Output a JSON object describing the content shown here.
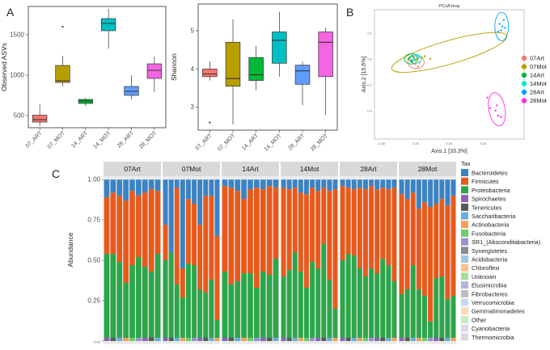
{
  "panel_letters": {
    "a": "A",
    "b": "B",
    "c": "C"
  },
  "colors": {
    "art07": "#f8766d",
    "mot07": "#b79f00",
    "art14": "#00ba38",
    "mot14": "#00bfc4",
    "art28": "#619cff",
    "mot28": "#f564e3",
    "panel_bg": "#ebebeb",
    "strip_bg": "#d9d9d9",
    "grid": "#ffffff",
    "axis_text": "#4d4d4d"
  },
  "chart_data": [
    {
      "id": "observed",
      "type": "boxplot",
      "title": "",
      "ylabel": "Observed ASVs",
      "xlabel": "",
      "ylim": [
        350,
        1850
      ],
      "yticks": [
        "500",
        "1000",
        "1500"
      ],
      "ytick_values": [
        500,
        1000,
        1500
      ],
      "groups": [
        {
          "label": "07_ART",
          "color": "#f8766d",
          "min": 370,
          "q1": 420,
          "median": 450,
          "q3": 505,
          "max": 640,
          "outliers": []
        },
        {
          "label": "07_MOT",
          "color": "#b79f00",
          "min": 860,
          "q1": 910,
          "median": 930,
          "q3": 1120,
          "max": 1240,
          "outliers": [
            1600
          ]
        },
        {
          "label": "14_ART",
          "color": "#00ba38",
          "min": 620,
          "q1": 650,
          "median": 680,
          "q3": 700,
          "max": 720,
          "outliers": []
        },
        {
          "label": "14_MOT",
          "color": "#00bfc4",
          "min": 1330,
          "q1": 1550,
          "median": 1640,
          "q3": 1700,
          "max": 1820,
          "outliers": []
        },
        {
          "label": "28_ART",
          "color": "#619cff",
          "min": 700,
          "q1": 750,
          "median": 800,
          "q3": 860,
          "max": 1000,
          "outliers": []
        },
        {
          "label": "28_MOT",
          "color": "#f564e3",
          "min": 790,
          "q1": 960,
          "median": 1060,
          "q3": 1140,
          "max": 1230,
          "outliers": []
        }
      ]
    },
    {
      "id": "shannon",
      "type": "boxplot",
      "title": "",
      "ylabel": "Shannon",
      "xlabel": "",
      "ylim": [
        2.4,
        5.7
      ],
      "yticks": [
        "3",
        "4",
        "5"
      ],
      "ytick_values": [
        3,
        4,
        5
      ],
      "groups": [
        {
          "label": "07_ART",
          "color": "#f8766d",
          "min": 3.7,
          "q1": 3.8,
          "median": 3.87,
          "q3": 4.0,
          "max": 4.2,
          "outliers": [
            2.6
          ]
        },
        {
          "label": "07_MOT",
          "color": "#b79f00",
          "min": 2.55,
          "q1": 3.55,
          "median": 3.75,
          "q3": 4.7,
          "max": 5.3,
          "outliers": []
        },
        {
          "label": "14_ART",
          "color": "#00ba38",
          "min": 3.45,
          "q1": 3.7,
          "median": 3.85,
          "q3": 4.3,
          "max": 4.6,
          "outliers": []
        },
        {
          "label": "14_MOT",
          "color": "#00bfc4",
          "min": 3.8,
          "q1": 4.15,
          "median": 4.75,
          "q3": 4.97,
          "max": 5.5,
          "outliers": []
        },
        {
          "label": "28_ART",
          "color": "#619cff",
          "min": 3.05,
          "q1": 3.6,
          "median": 3.95,
          "q3": 4.1,
          "max": 4.2,
          "outliers": []
        },
        {
          "label": "28_MOT",
          "color": "#f564e3",
          "min": 2.8,
          "q1": 3.8,
          "median": 4.7,
          "q3": 4.97,
          "max": 5.08,
          "outliers": []
        }
      ]
    },
    {
      "id": "pcoa",
      "type": "scatter",
      "title": "PCoA bray",
      "xlabel": "Axis.1  [33.3%]",
      "ylabel": "Axis.2  [15.6%]",
      "xlim": [
        -0.55,
        0.55
      ],
      "ylim": [
        -0.62,
        0.38
      ],
      "xticks": [
        "-0.50",
        "-0.25",
        "0.00",
        "0.25"
      ],
      "xtick_values": [
        -0.5,
        -0.25,
        0.0,
        0.25
      ],
      "yticks": [
        "0.2",
        "0.0",
        "-0.2",
        "-0.4"
      ],
      "ytick_values": [
        0.2,
        0.0,
        -0.2,
        -0.4
      ],
      "legend": [
        {
          "label": "07Art",
          "color": "#f8766d"
        },
        {
          "label": "07Mot",
          "color": "#b79f00"
        },
        {
          "label": "14Art",
          "color": "#00ba38"
        },
        {
          "label": "14Mot",
          "color": "#00e5e0"
        },
        {
          "label": "28Art",
          "color": "#00a2ff"
        },
        {
          "label": "28Mot",
          "color": "#ff2ee0"
        }
      ],
      "series": [
        {
          "name": "07Art",
          "color": "#f8766d",
          "points": [
            [
              -0.27,
              -0.02
            ],
            [
              -0.25,
              -0.04
            ],
            [
              -0.23,
              -0.06
            ],
            [
              -0.26,
              0.01
            ],
            [
              -0.22,
              -0.03
            ]
          ],
          "ellipse": {
            "cx": -0.245,
            "cy": -0.025,
            "rx": 0.06,
            "ry": 0.05,
            "angle": 0
          }
        },
        {
          "name": "07Mot",
          "color": "#b79f00",
          "points": [
            [
              -0.24,
              0.0
            ],
            [
              -0.18,
              0.02
            ],
            [
              -0.14,
              0.0
            ],
            [
              -0.28,
              -0.01
            ],
            [
              -0.2,
              0.01
            ]
          ],
          "ellipse": {
            "cx": 0.0,
            "cy": 0.05,
            "rx": 0.44,
            "ry": 0.09,
            "angle": -16
          }
        },
        {
          "name": "14Art",
          "color": "#00ba38",
          "points": [
            [
              -0.3,
              0.0
            ],
            [
              -0.28,
              -0.02
            ],
            [
              -0.27,
              0.02
            ],
            [
              -0.25,
              -0.01
            ],
            [
              -0.29,
              0.01
            ]
          ],
          "ellipse": {
            "cx": -0.28,
            "cy": 0.0,
            "rx": 0.05,
            "ry": 0.04,
            "angle": 0
          }
        },
        {
          "name": "14Mot",
          "color": "#00e5e0",
          "points": [
            [
              -0.26,
              0.0
            ],
            [
              -0.24,
              0.02
            ],
            [
              -0.22,
              0.01
            ],
            [
              -0.27,
              -0.01
            ]
          ],
          "ellipse": {
            "cx": -0.25,
            "cy": 0.0,
            "rx": 0.045,
            "ry": 0.035,
            "angle": 0
          }
        },
        {
          "name": "28Art",
          "color": "#00a2ff",
          "points": [
            [
              0.37,
              0.27
            ],
            [
              0.38,
              0.22
            ],
            [
              0.39,
              0.25
            ],
            [
              0.4,
              0.3
            ],
            [
              0.36,
              0.21
            ],
            [
              0.41,
              0.24
            ]
          ],
          "ellipse": {
            "cx": 0.385,
            "cy": 0.25,
            "rx": 0.05,
            "ry": 0.11,
            "angle": 0
          }
        },
        {
          "name": "28Mot",
          "color": "#ff2ee0",
          "points": [
            [
              0.28,
              -0.3
            ],
            [
              0.34,
              -0.4
            ],
            [
              0.36,
              -0.44
            ],
            [
              0.38,
              -0.45
            ],
            [
              0.3,
              -0.38
            ],
            [
              0.35,
              -0.36
            ]
          ],
          "ellipse": {
            "cx": 0.35,
            "cy": -0.39,
            "rx": 0.06,
            "ry": 0.13,
            "angle": -10
          }
        }
      ]
    },
    {
      "id": "abundance",
      "type": "stacked-bar",
      "title": "",
      "ylabel": "Abundance",
      "xlabel": "",
      "ylim": [
        0,
        1
      ],
      "yticks": [
        "0.00",
        "0.25",
        "0.50",
        "0.75",
        "1.00"
      ],
      "ytick_values": [
        0,
        0.25,
        0.5,
        0.75,
        1.0
      ],
      "facets": [
        "07Art",
        "07Mot",
        "14Art",
        "14Mot",
        "28Art",
        "28Mot"
      ],
      "legend_title": "Tax",
      "taxa": [
        {
          "name": "Bacteroidetes",
          "color": "#3a83c4"
        },
        {
          "name": "Firmicutes",
          "color": "#e85a1c"
        },
        {
          "name": "Proteobacteria",
          "color": "#2ca64a"
        },
        {
          "name": "Spirochaetes",
          "color": "#8b62b8"
        },
        {
          "name": "Tenericutes",
          "color": "#595959"
        },
        {
          "name": "Saccharibacteria",
          "color": "#6aaed6"
        },
        {
          "name": "Actinobacteria",
          "color": "#f5a05a"
        },
        {
          "name": "Fusobacteria",
          "color": "#6ccf6a"
        },
        {
          "name": "SR1_(Absconditabacteria)",
          "color": "#a08fcc"
        },
        {
          "name": "Synergistetes",
          "color": "#8c8c8c"
        },
        {
          "name": "Acidobacteria",
          "color": "#9ecae1"
        },
        {
          "name": "Chloroflexi",
          "color": "#fbc08d"
        },
        {
          "name": "Unknown",
          "color": "#a5dd9b"
        },
        {
          "name": "Elusimicrobia",
          "color": "#bcb4dc"
        },
        {
          "name": "Fibrobacteres",
          "color": "#bdbdbd"
        },
        {
          "name": "Verrucomicrobia",
          "color": "#c6dbef"
        },
        {
          "name": "Gemmatimonadetes",
          "color": "#fdd9b4"
        },
        {
          "name": "Other",
          "color": "#c7e9c0"
        },
        {
          "name": "Cyanobacteria",
          "color": "#dadaeb"
        },
        {
          "name": "Thermomicrobia",
          "color": "#d9d9d9"
        }
      ],
      "samples": [
        [
          [
            0.11,
            0.35,
            0.54
          ],
          [
            0.08,
            0.38,
            0.54
          ],
          [
            0.1,
            0.41,
            0.49
          ],
          [
            0.13,
            0.51,
            0.36
          ],
          [
            0.07,
            0.46,
            0.47
          ],
          [
            0.1,
            0.38,
            0.52
          ],
          [
            0.08,
            0.46,
            0.46
          ],
          [
            0.06,
            0.51,
            0.43
          ],
          [
            0.07,
            0.39,
            0.54
          ]
        ],
        [
          [
            0.28,
            0.22,
            0.5
          ],
          [
            0.45,
            0.0,
            0.55
          ],
          [
            0.05,
            0.6,
            0.35
          ],
          [
            0.55,
            0.18,
            0.27
          ],
          [
            0.12,
            0.4,
            0.48
          ],
          [
            0.15,
            0.38,
            0.47
          ],
          [
            0.28,
            0.4,
            0.32
          ],
          [
            0.1,
            0.6,
            0.3
          ],
          [
            0.1,
            0.52,
            0.38
          ],
          [
            0.35,
            0.52,
            0.13
          ]
        ],
        [
          [
            0.04,
            0.53,
            0.43
          ],
          [
            0.05,
            0.6,
            0.35
          ],
          [
            0.07,
            0.56,
            0.37
          ],
          [
            0.12,
            0.46,
            0.42
          ],
          [
            0.06,
            0.52,
            0.42
          ],
          [
            0.05,
            0.62,
            0.33
          ],
          [
            0.06,
            0.51,
            0.43
          ],
          [
            0.04,
            0.55,
            0.41
          ],
          [
            0.05,
            0.44,
            0.51
          ]
        ],
        [
          [
            0.05,
            0.55,
            0.4
          ],
          [
            0.06,
            0.5,
            0.44
          ],
          [
            0.05,
            0.4,
            0.55
          ],
          [
            0.08,
            0.49,
            0.43
          ],
          [
            0.09,
            0.58,
            0.33
          ],
          [
            0.05,
            0.46,
            0.49
          ],
          [
            0.07,
            0.48,
            0.45
          ],
          [
            0.05,
            0.35,
            0.6
          ],
          [
            0.07,
            0.55,
            0.38
          ],
          [
            0.06,
            0.74,
            0.2
          ]
        ],
        [
          [
            0.04,
            0.46,
            0.5
          ],
          [
            0.05,
            0.41,
            0.54
          ],
          [
            0.06,
            0.41,
            0.53
          ],
          [
            0.05,
            0.5,
            0.45
          ],
          [
            0.06,
            0.54,
            0.4
          ],
          [
            0.04,
            0.51,
            0.45
          ],
          [
            0.06,
            0.52,
            0.42
          ],
          [
            0.05,
            0.44,
            0.51
          ],
          [
            0.06,
            0.47,
            0.47
          ],
          [
            0.05,
            0.58,
            0.37
          ]
        ],
        [
          [
            0.09,
            0.62,
            0.29
          ],
          [
            0.12,
            0.56,
            0.32
          ],
          [
            0.08,
            0.45,
            0.47
          ],
          [
            0.18,
            0.5,
            0.32
          ],
          [
            0.14,
            0.58,
            0.28
          ],
          [
            0.17,
            0.71,
            0.12
          ],
          [
            0.15,
            0.46,
            0.39
          ],
          [
            0.12,
            0.48,
            0.4
          ],
          [
            0.16,
            0.58,
            0.26
          ],
          [
            0.1,
            0.62,
            0.28
          ]
        ]
      ]
    }
  ]
}
